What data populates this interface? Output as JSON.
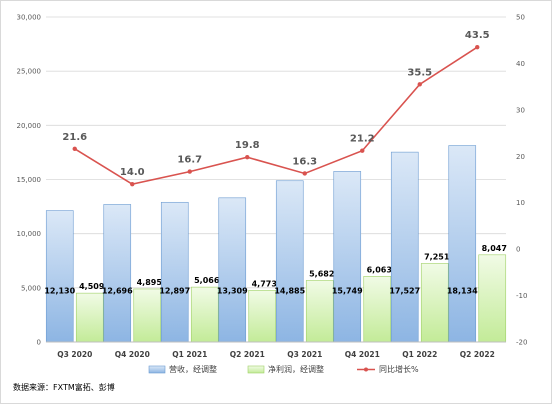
{
  "chart_data": {
    "type": "bar",
    "categories": [
      "Q3 2020",
      "Q4 2020",
      "Q1 2021",
      "Q2 2021",
      "Q3 2021",
      "Q4 2021",
      "Q1 2022",
      "Q2 2022"
    ],
    "series": [
      {
        "name": "营收，经调整",
        "type": "bar",
        "axis": "left",
        "color": "#9dc3e6",
        "values": [
          12130,
          12696,
          12897,
          13309,
          14885,
          15749,
          17527,
          18134
        ],
        "labels": [
          "12,130",
          "12,696",
          "12,897",
          "13,309",
          "14,885",
          "15,749",
          "17,527",
          "18,134"
        ]
      },
      {
        "name": "净利润，经调整",
        "type": "bar",
        "axis": "left",
        "color": "#c6efa0",
        "values": [
          4509,
          4895,
          5066,
          4773,
          5682,
          6063,
          7251,
          8047
        ],
        "labels": [
          "4,509",
          "4,895",
          "5,066",
          "4,773",
          "5,682",
          "6,063",
          "7,251",
          "8,047"
        ]
      },
      {
        "name": "同比增长%",
        "type": "line",
        "axis": "right",
        "color": "#d9534f",
        "values": [
          21.6,
          14.0,
          16.7,
          19.8,
          16.3,
          21.2,
          35.5,
          43.5
        ],
        "labels": [
          "21.6",
          "14.0",
          "16.7",
          "19.8",
          "16.3",
          "21.2",
          "35.5",
          "43.5"
        ]
      }
    ],
    "y_left": {
      "min": 0,
      "max": 30000,
      "step": 5000,
      "ticks": [
        "0",
        "5,000",
        "10,000",
        "15,000",
        "20,000",
        "25,000",
        "30,000"
      ]
    },
    "y_right": {
      "min": -20,
      "max": 50,
      "step": 10,
      "ticks": [
        "-20",
        "-10",
        "0",
        "10",
        "20",
        "30",
        "40",
        "50"
      ]
    },
    "grid": true,
    "legend_position": "bottom",
    "source_note": "数据来源：FXTM富拓、彭博"
  }
}
